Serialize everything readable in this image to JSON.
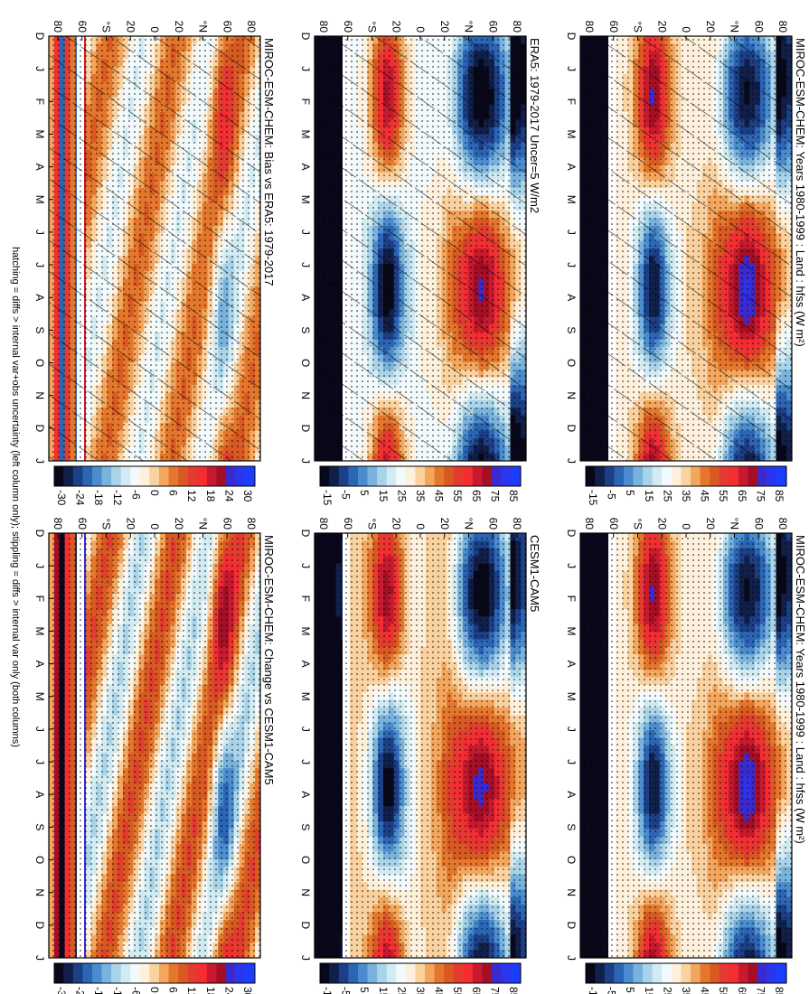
{
  "figure": {
    "orientation": "rotated-90-clockwise",
    "footnote": "hatching = diffs > internal var+obs uncertainty (left column only); stippling = diffs > internal var only (both columns)"
  },
  "panels": [
    {
      "id": "p1",
      "title": "MIROC-ESM-CHEM: Years 1980-1999 : Land : hfss (W m²)",
      "colorbar": "cb_abs",
      "pattern": "model",
      "hatch": true,
      "stipple": true
    },
    {
      "id": "p2",
      "title": "MIROC-ESM-CHEM: Years 1980-1999 : Land : hfss (W m²)",
      "colorbar": "cb_abs",
      "pattern": "model",
      "hatch": false,
      "stipple": true
    },
    {
      "id": "p3",
      "title": "ERA5: 1979-2017 Uncer=5 W/m2",
      "colorbar": "cb_abs",
      "pattern": "obs",
      "hatch": true,
      "stipple": true
    },
    {
      "id": "p4",
      "title": "CESM1-CAM5",
      "colorbar": "cb_abs",
      "pattern": "cesm",
      "hatch": false,
      "stipple": true
    },
    {
      "id": "p5",
      "title": "MIROC-ESM-CHEM: Bias vs ERA5: 1979-2017",
      "colorbar": "cb_diff",
      "pattern": "bias",
      "hatch": true,
      "stipple": true
    },
    {
      "id": "p6",
      "title": "MIROC-ESM-CHEM: Change vs CESM1-CAM5",
      "colorbar": "cb_diff",
      "pattern": "change",
      "hatch": false,
      "stipple": true
    }
  ],
  "axes": {
    "months": [
      "D",
      "J",
      "F",
      "M",
      "A",
      "M",
      "J",
      "J",
      "A",
      "S",
      "O",
      "N",
      "D",
      "J"
    ],
    "lat_ticks": [
      "80",
      "60",
      "°N",
      "20",
      "0",
      "20",
      "°S",
      "60",
      "80"
    ]
  },
  "colorbars": {
    "cb_abs": {
      "labels": [
        "85",
        "75",
        "65",
        "55",
        "45",
        "35",
        "25",
        "15",
        "5",
        "-5",
        "-15"
      ],
      "min": -20,
      "max": 90
    },
    "cb_diff": {
      "labels": [
        "30",
        "24",
        "18",
        "12",
        "6",
        "0",
        "-6",
        "-12",
        "-18",
        "-24",
        "-30"
      ],
      "min": -33,
      "max": 33
    }
  },
  "palette": [
    "#08081a",
    "#10204a",
    "#1c3f86",
    "#2b65b4",
    "#4a8ccd",
    "#79b3dd",
    "#a8d3e8",
    "#d2ebf3",
    "#f2fafc",
    "#fdf0dc",
    "#fad2a0",
    "#f3a65d",
    "#e5772d",
    "#d85a22",
    "#e33b2f",
    "#f42d33",
    "#c81a2e",
    "#a50f26",
    "#3a2bd0",
    "#2a35ee",
    "#1a3dff"
  ],
  "chart_data": [
    {
      "type": "heatmap",
      "title": "MIROC-ESM-CHEM: Years 1980-1999 : Land : hfss (W m²)",
      "x": [
        "D",
        "J",
        "F",
        "M",
        "A",
        "M",
        "J",
        "J",
        "A",
        "S",
        "O",
        "N",
        "D",
        "J"
      ],
      "y": [
        "80",
        "60",
        "°N",
        "20",
        "0",
        "20",
        "°S",
        "60",
        "80"
      ],
      "zlim": [
        -15,
        85
      ],
      "colorbar": [
        "85",
        "75",
        "65",
        "55",
        "45",
        "35",
        "25",
        "15",
        "5",
        "-5",
        "-15"
      ]
    },
    {
      "type": "heatmap",
      "title": "MIROC-ESM-CHEM: Years 1980-1999 : Land : hfss (W m²)",
      "x": [
        "D",
        "J",
        "F",
        "M",
        "A",
        "M",
        "J",
        "J",
        "A",
        "S",
        "O",
        "N",
        "D",
        "J"
      ],
      "y": [
        "80",
        "60",
        "°N",
        "20",
        "0",
        "20",
        "°S",
        "60",
        "80"
      ],
      "zlim": [
        -15,
        85
      ],
      "colorbar": [
        "85",
        "75",
        "65",
        "55",
        "45",
        "35",
        "25",
        "15",
        "5",
        "-5",
        "-15"
      ]
    },
    {
      "type": "heatmap",
      "title": "ERA5: 1979-2017 Uncer=5 W/m2",
      "x": [
        "D",
        "J",
        "F",
        "M",
        "A",
        "M",
        "J",
        "J",
        "A",
        "S",
        "O",
        "N",
        "D",
        "J"
      ],
      "y": [
        "80",
        "60",
        "°N",
        "20",
        "0",
        "20",
        "°S",
        "60",
        "80"
      ],
      "zlim": [
        -15,
        85
      ],
      "colorbar": [
        "85",
        "75",
        "65",
        "55",
        "45",
        "35",
        "25",
        "15",
        "5",
        "-5",
        "-15"
      ]
    },
    {
      "type": "heatmap",
      "title": "CESM1-CAM5",
      "x": [
        "D",
        "J",
        "F",
        "M",
        "A",
        "M",
        "J",
        "J",
        "A",
        "S",
        "O",
        "N",
        "D",
        "J"
      ],
      "y": [
        "80",
        "60",
        "°N",
        "20",
        "0",
        "20",
        "°S",
        "60",
        "80"
      ],
      "zlim": [
        -15,
        85
      ],
      "colorbar": [
        "85",
        "75",
        "65",
        "55",
        "45",
        "35",
        "25",
        "15",
        "5",
        "-5",
        "-15"
      ]
    },
    {
      "type": "heatmap",
      "title": "MIROC-ESM-CHEM: Bias vs ERA5: 1979-2017",
      "x": [
        "D",
        "J",
        "F",
        "M",
        "A",
        "M",
        "J",
        "J",
        "A",
        "S",
        "O",
        "N",
        "D",
        "J"
      ],
      "y": [
        "80",
        "60",
        "°N",
        "20",
        "0",
        "20",
        "°S",
        "60",
        "80"
      ],
      "zlim": [
        -30,
        30
      ],
      "colorbar": [
        "30",
        "24",
        "18",
        "12",
        "6",
        "0",
        "-6",
        "-12",
        "-18",
        "-24",
        "-30"
      ]
    },
    {
      "type": "heatmap",
      "title": "MIROC-ESM-CHEM: Change vs CESM1-CAM5",
      "x": [
        "D",
        "J",
        "F",
        "M",
        "A",
        "M",
        "J",
        "J",
        "A",
        "S",
        "O",
        "N",
        "D",
        "J"
      ],
      "y": [
        "80",
        "60",
        "°N",
        "20",
        "0",
        "20",
        "°S",
        "60",
        "80"
      ],
      "zlim": [
        -30,
        30
      ],
      "colorbar": [
        "30",
        "24",
        "18",
        "12",
        "6",
        "0",
        "-6",
        "-12",
        "-18",
        "-24",
        "-30"
      ]
    }
  ]
}
